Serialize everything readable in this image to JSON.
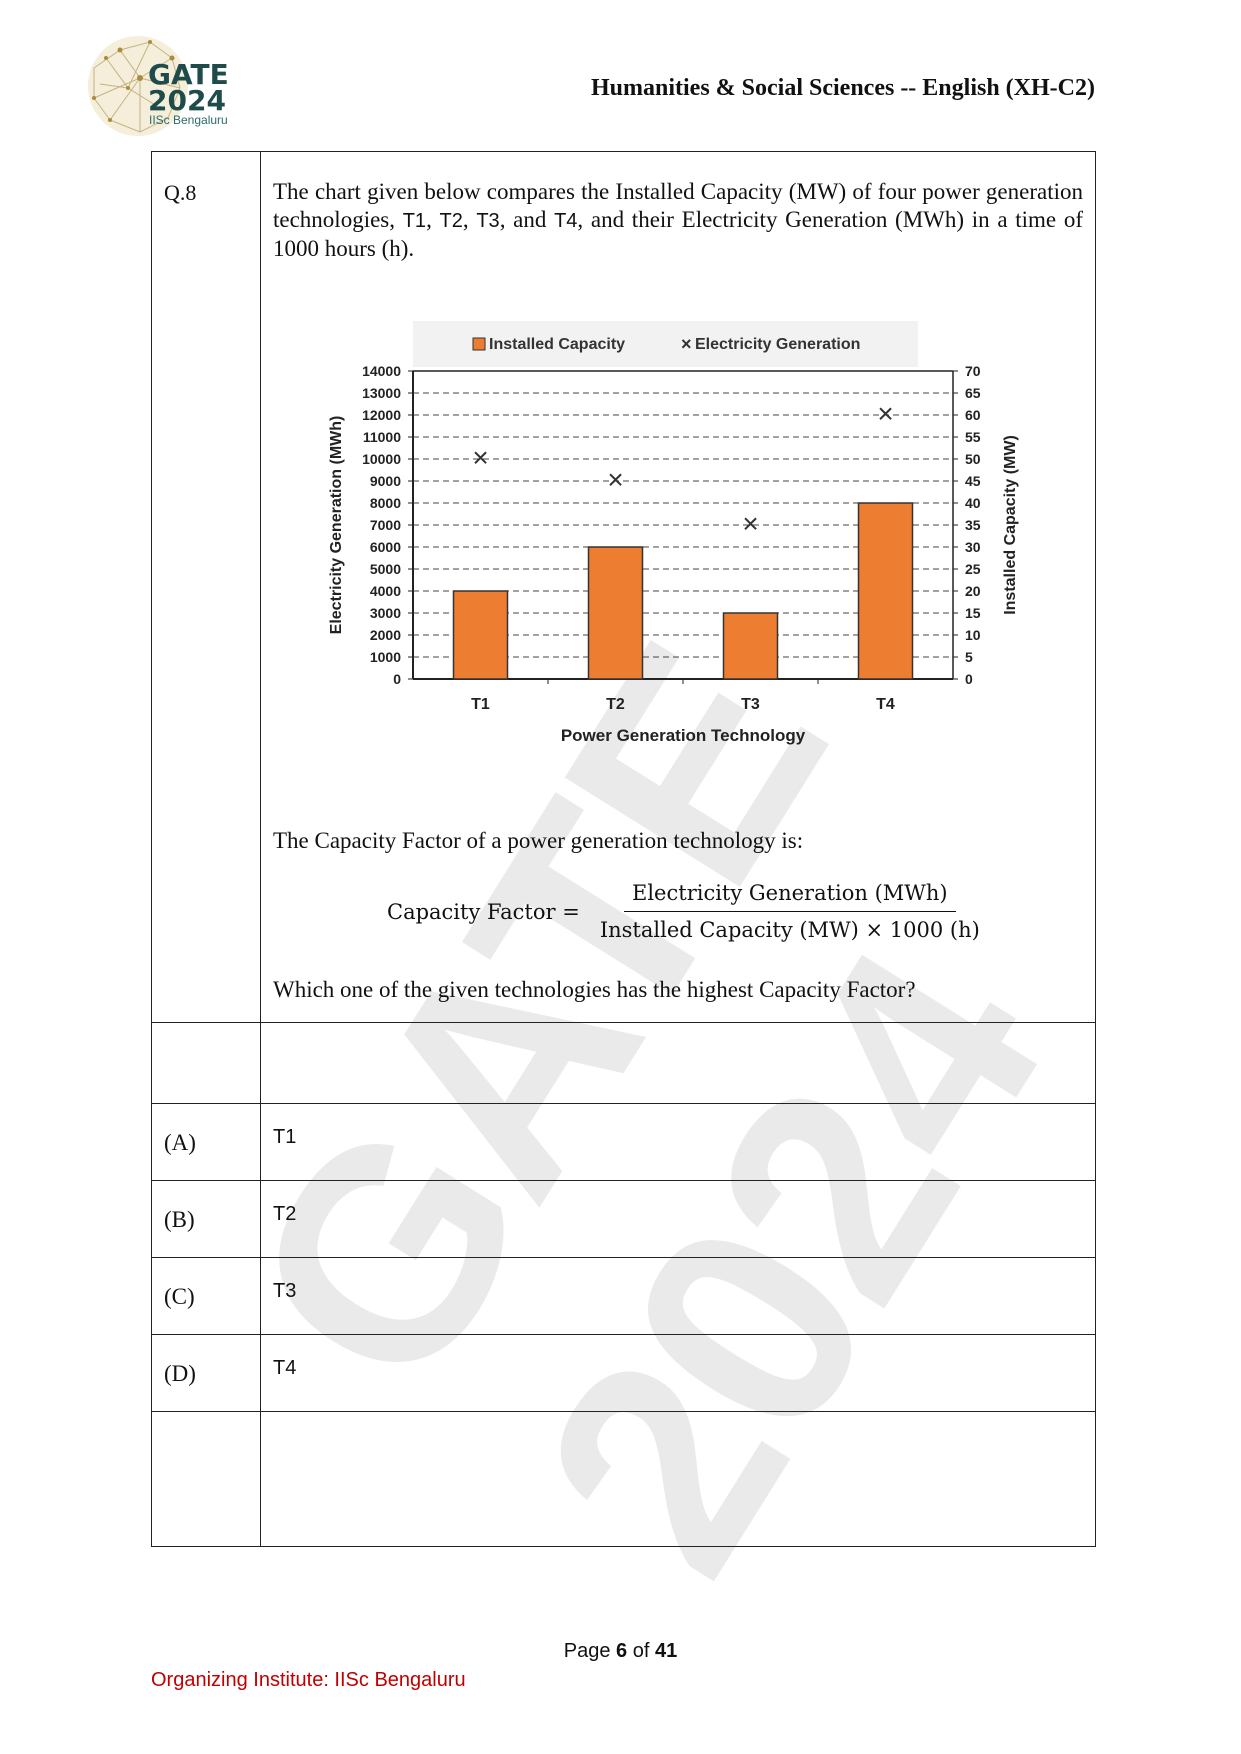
{
  "header": {
    "logo_line1": "GATE",
    "logo_line2": "2024",
    "logo_sub": "IISc Bengaluru",
    "title": "Humanities & Social Sciences -- English (XH-C2)"
  },
  "question": {
    "number": "Q.8",
    "intro_1": "The chart given below compares the Installed Capacity (MW) of four power generation technologies, ",
    "t1": "T1",
    "sep1": ", ",
    "t2": "T2",
    "sep2": ", ",
    "t3": "T3",
    "sep3": ", and ",
    "t4": "T4",
    "intro_2": ", and their Electricity Generation (MWh) in a time of 1000 hours (h).",
    "cf_intro": "The Capacity Factor of a power generation technology is:",
    "formula_lhs": "Capacity Factor =",
    "formula_num": "Electricity Generation (MWh)",
    "formula_den": "Installed Capacity (MW) × 1000 (h)",
    "prompt": "Which one of the given technologies has the highest Capacity Factor?"
  },
  "options": [
    {
      "label": "(A)",
      "value": "T1"
    },
    {
      "label": "(B)",
      "value": "T2"
    },
    {
      "label": "(C)",
      "value": "T3"
    },
    {
      "label": "(D)",
      "value": "T4"
    }
  ],
  "footer": {
    "page_prefix": "Page ",
    "page_num": "6",
    "page_of": " of ",
    "page_total": "41",
    "org": "Organizing Institute: IISc Bengaluru"
  },
  "watermark": "GATE 2024",
  "colors": {
    "bar": "#ed7d31",
    "org_text": "#c00000",
    "logo": "#1f4b4a"
  },
  "chart_data": {
    "type": "bar",
    "categories": [
      "T1",
      "T2",
      "T3",
      "T4"
    ],
    "series": [
      {
        "name": "Installed Capacity",
        "axis": "right",
        "values": [
          20,
          30,
          15,
          40
        ]
      },
      {
        "name": "Electricity Generation",
        "axis": "left",
        "marker": "x",
        "values": [
          10000,
          9000,
          7000,
          12000
        ]
      }
    ],
    "xlabel": "Power Generation Technology",
    "ylabel_left": "Electricity Generation (MWh)",
    "ylabel_right": "Installed Capacity (MW)",
    "ylim_left": [
      0,
      14000
    ],
    "ylim_right": [
      0,
      70
    ],
    "yticks_left": [
      "0",
      "1000",
      "2000",
      "3000",
      "4000",
      "5000",
      "6000",
      "7000",
      "8000",
      "9000",
      "10000",
      "11000",
      "12000",
      "13000",
      "14000"
    ],
    "yticks_right": [
      "0",
      "5",
      "10",
      "15",
      "20",
      "25",
      "30",
      "35",
      "40",
      "45",
      "50",
      "55",
      "60",
      "65",
      "70"
    ],
    "grid": "dashed horizontal",
    "legend": "top"
  }
}
